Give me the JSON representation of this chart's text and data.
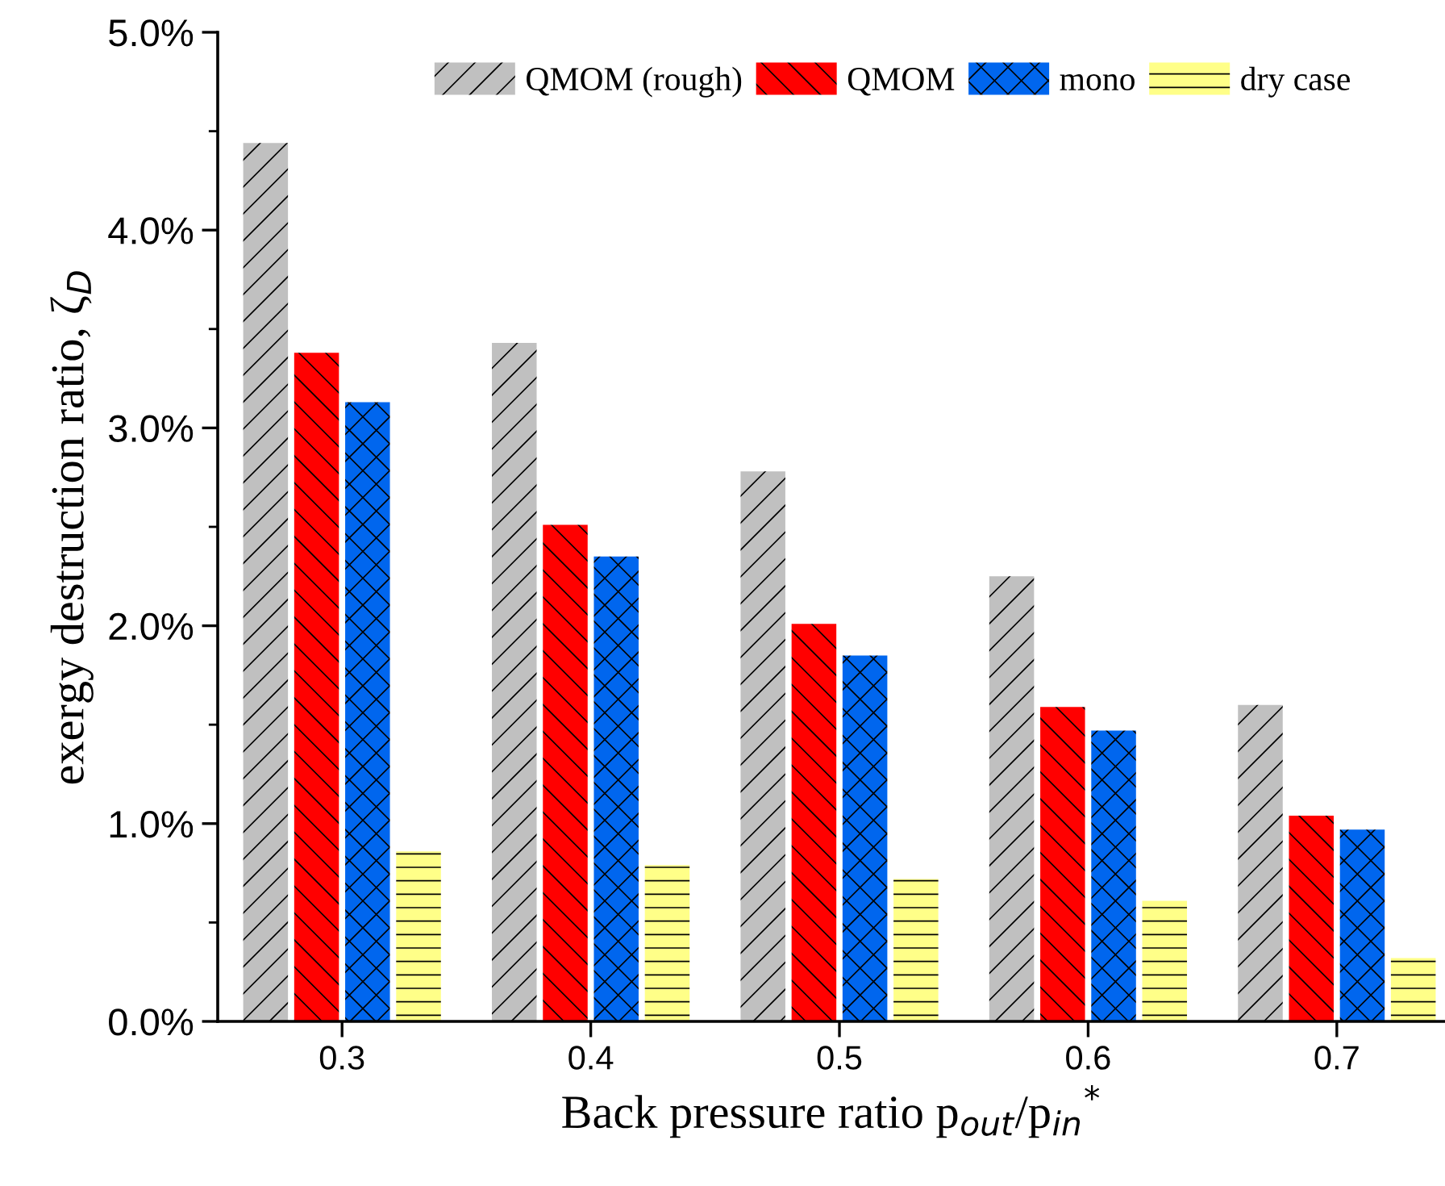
{
  "chart_data": {
    "type": "bar",
    "xlabel": "Back pressure ratio p$_{out}$/p$_{in}$$^{*}$",
    "ylabel": "exergy destruction ratio, ζ$_{D}$",
    "categories": [
      "0.3",
      "0.4",
      "0.5",
      "0.6",
      "0.7"
    ],
    "series": [
      {
        "name": "QMOM (rough)",
        "color": "#c0c0c0",
        "values": [
          4.44,
          3.43,
          2.78,
          2.25,
          1.6
        ]
      },
      {
        "name": "QMOM",
        "color": "#ff0000",
        "values": [
          3.38,
          2.51,
          2.01,
          1.59,
          1.04
        ]
      },
      {
        "name": "mono",
        "color": "#0066ee",
        "values": [
          3.13,
          2.35,
          1.85,
          1.47,
          0.97
        ]
      },
      {
        "name": "dry case",
        "color": "#ffff88",
        "values": [
          0.86,
          0.79,
          0.72,
          0.61,
          0.32
        ]
      }
    ],
    "ylim": [
      0,
      5
    ],
    "yticks": [
      {
        "value": 0,
        "label": "0.0%"
      },
      {
        "value": 1,
        "label": "1.0%"
      },
      {
        "value": 2,
        "label": "2.0%"
      },
      {
        "value": 3,
        "label": "3.0%"
      },
      {
        "value": 4,
        "label": "4.0%"
      },
      {
        "value": 5,
        "label": "5.0%"
      }
    ],
    "legend": "top",
    "grid": false
  }
}
